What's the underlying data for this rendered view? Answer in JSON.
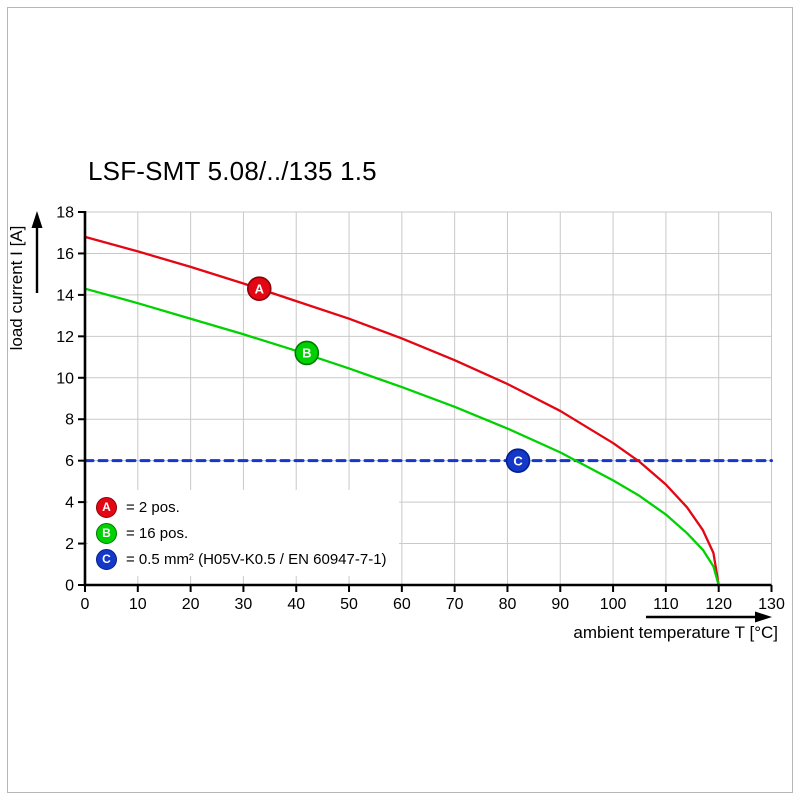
{
  "chart_data": {
    "type": "line",
    "title": "LSF-SMT 5.08/../135 1.5",
    "xlabel": "ambient temperature T [°C]",
    "ylabel": "load current I [A]",
    "xlim": [
      0,
      130
    ],
    "ylim": [
      0,
      18
    ],
    "xticks": [
      0,
      10,
      20,
      30,
      40,
      50,
      60,
      70,
      80,
      90,
      100,
      110,
      120,
      130
    ],
    "yticks": [
      0,
      2,
      4,
      6,
      8,
      10,
      12,
      14,
      16,
      18
    ],
    "grid": true,
    "legend_position": "bottom-left-inside",
    "series": [
      {
        "name": "A",
        "label": "= 2 pos.",
        "color": "#e30613",
        "ring": "#90000a",
        "dash": false,
        "points": [
          [
            0,
            16.8
          ],
          [
            10,
            16.1
          ],
          [
            20,
            15.35
          ],
          [
            30,
            14.55
          ],
          [
            40,
            13.7
          ],
          [
            50,
            12.85
          ],
          [
            60,
            11.9
          ],
          [
            70,
            10.85
          ],
          [
            80,
            9.7
          ],
          [
            90,
            8.4
          ],
          [
            100,
            6.85
          ],
          [
            105,
            5.95
          ],
          [
            110,
            4.85
          ],
          [
            114,
            3.75
          ],
          [
            117,
            2.65
          ],
          [
            119,
            1.55
          ],
          [
            120,
            0
          ]
        ]
      },
      {
        "name": "B",
        "label": "= 16 pos.",
        "color": "#00d100",
        "ring": "#007800",
        "dash": false,
        "points": [
          [
            0,
            14.3
          ],
          [
            10,
            13.6
          ],
          [
            20,
            12.85
          ],
          [
            30,
            12.1
          ],
          [
            40,
            11.3
          ],
          [
            50,
            10.45
          ],
          [
            60,
            9.55
          ],
          [
            70,
            8.6
          ],
          [
            80,
            7.55
          ],
          [
            90,
            6.4
          ],
          [
            100,
            5.05
          ],
          [
            105,
            4.3
          ],
          [
            110,
            3.4
          ],
          [
            114,
            2.5
          ],
          [
            117,
            1.7
          ],
          [
            119,
            0.9
          ],
          [
            120,
            0
          ]
        ]
      },
      {
        "name": "C",
        "label": "= 0.5 mm² (H05V-K0.5 / EN 60947-7-1)",
        "color": "#1438c8",
        "ring": "#001f8f",
        "dash": true,
        "points": [
          [
            0,
            6
          ],
          [
            130,
            6
          ]
        ]
      }
    ],
    "markers": [
      {
        "letter": "A",
        "x": 33,
        "y": 14.3,
        "color": "#e30613",
        "ring": "#90000a"
      },
      {
        "letter": "B",
        "x": 42,
        "y": 11.2,
        "color": "#00d100",
        "ring": "#007800"
      },
      {
        "letter": "C",
        "x": 82,
        "y": 6,
        "color": "#1438c8",
        "ring": "#001f8f"
      }
    ]
  }
}
